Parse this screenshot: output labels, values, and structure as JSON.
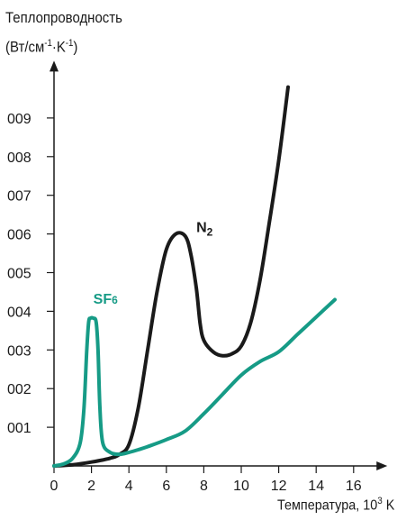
{
  "chart_data": {
    "type": "line",
    "ylabel_line1": "Теплопроводность",
    "ylabel_line2_base": "(Вт/см",
    "ylabel_sup1": "-1",
    "ylabel_mid": "·K",
    "ylabel_sup2": "-1",
    "ylabel_end": ")",
    "xlabel_text": "Температура, 10",
    "xlabel_sup": "3",
    "xlabel_unit": " K",
    "x_ticks": [
      "0",
      "2",
      "4",
      "6",
      "8",
      "10",
      "12",
      "14",
      "16"
    ],
    "y_ticks": [
      "001",
      "002",
      "003",
      "004",
      "005",
      "006",
      "007",
      "008",
      "009"
    ],
    "xlim": [
      0,
      17.8
    ],
    "ylim": [
      0,
      10.2
    ],
    "colors": {
      "axis": "#1a1a1a",
      "n2": "#1a1a1a",
      "sf6": "#169b86"
    },
    "series": [
      {
        "name": "N2",
        "name_base": "N",
        "name_sub": "2",
        "x": [
          0,
          1,
          2,
          3,
          3.5,
          4,
          4.5,
          5,
          5.5,
          6,
          6.5,
          7,
          7.3,
          7.6,
          7.8,
          8,
          8.5,
          9,
          9.5,
          10,
          10.5,
          11,
          11.5,
          12,
          12.5
        ],
        "y": [
          0,
          0.03,
          0.1,
          0.2,
          0.3,
          0.55,
          1.5,
          3.0,
          4.5,
          5.6,
          6.0,
          5.95,
          5.5,
          4.6,
          3.7,
          3.25,
          2.95,
          2.85,
          2.9,
          3.1,
          3.7,
          4.8,
          6.3,
          7.9,
          9.8
        ]
      },
      {
        "name": "SF6",
        "name_base": "SF",
        "name_sub": "6",
        "x": [
          0,
          0.5,
          1,
          1.4,
          1.6,
          1.75,
          1.85,
          1.95,
          2.1,
          2.25,
          2.35,
          2.45,
          2.6,
          3,
          3.5,
          4,
          4.5,
          5,
          6,
          7,
          8,
          9,
          10,
          11,
          12,
          13,
          14,
          15
        ],
        "y": [
          0,
          0.05,
          0.2,
          0.6,
          1.5,
          3.0,
          3.72,
          3.82,
          3.82,
          3.72,
          3.0,
          1.5,
          0.6,
          0.35,
          0.3,
          0.35,
          0.42,
          0.5,
          0.68,
          0.9,
          1.35,
          1.85,
          2.35,
          2.7,
          2.95,
          3.4,
          3.85,
          4.3
        ]
      }
    ]
  }
}
